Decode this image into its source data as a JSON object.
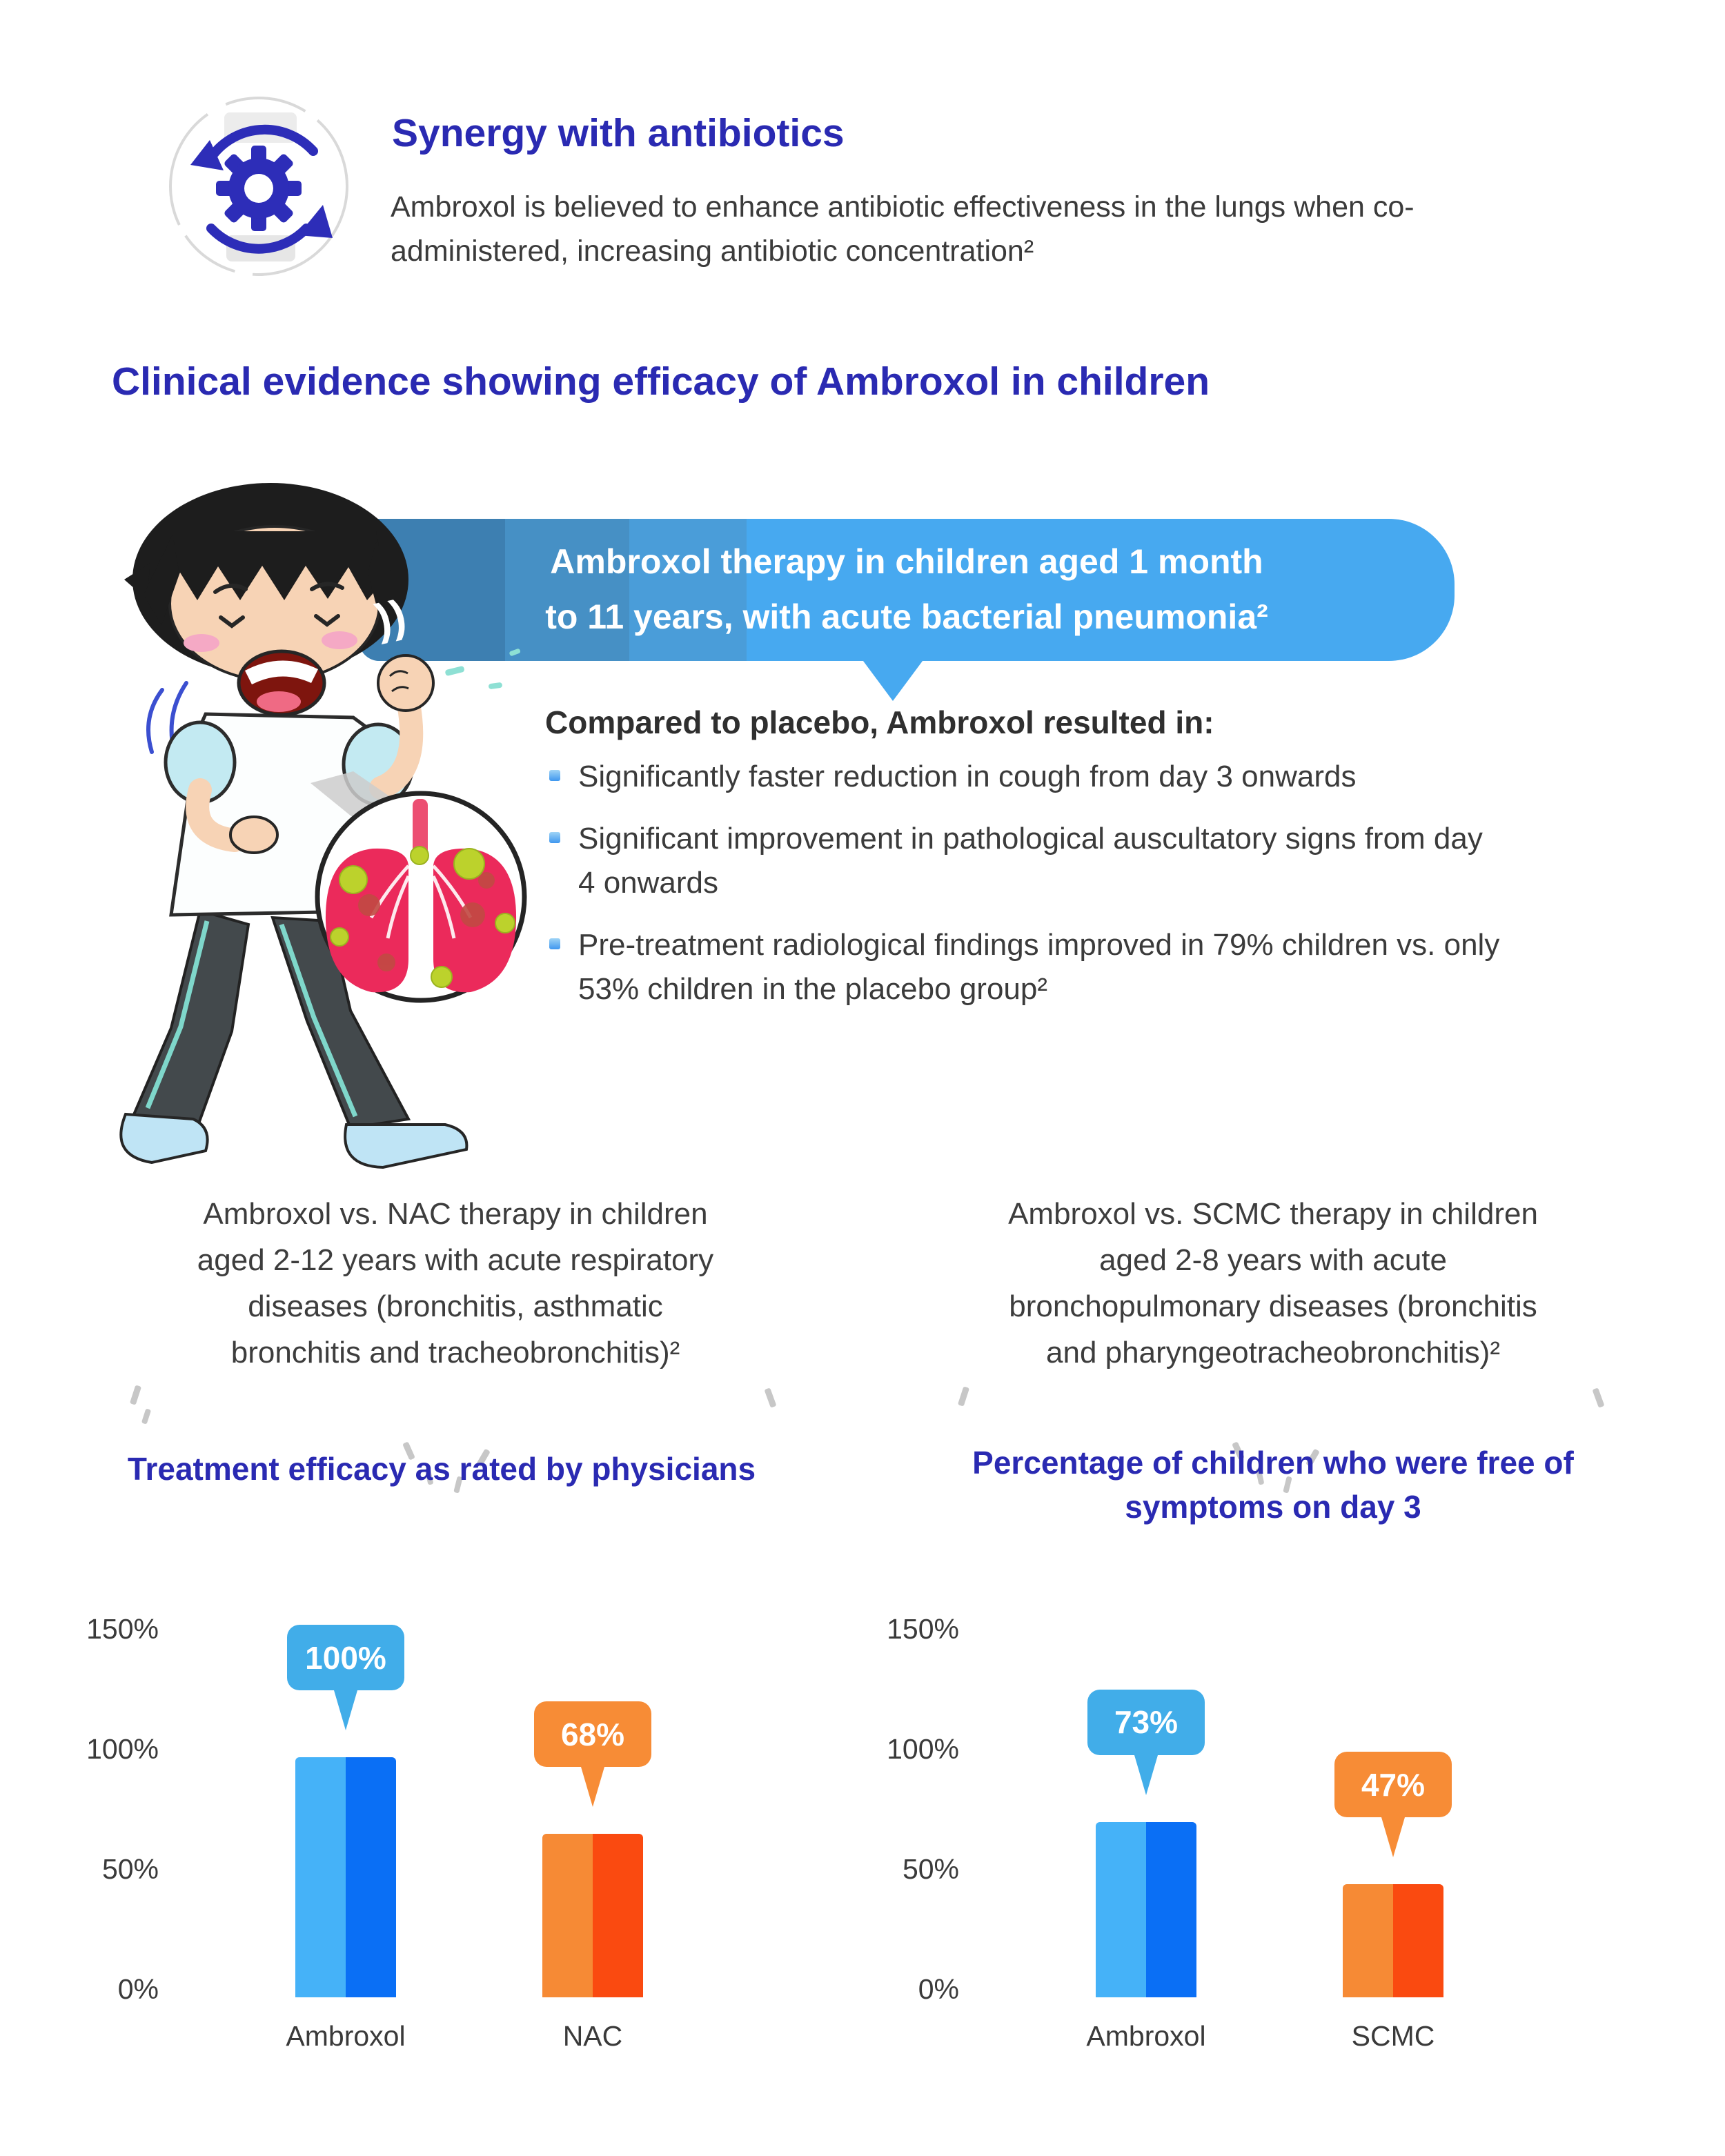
{
  "colors": {
    "heading_indigo": "#2a2ab2",
    "body_text": "#3b3b3b",
    "bubble_main": "#47a9f0",
    "bubble_bands": [
      "#3d7fb1",
      "#4690c5",
      "#4a9dd9"
    ],
    "blue_bar_light": "#45B2F8",
    "blue_bar_dark": "#0A6FF5",
    "blue_callout": "#41ADE9",
    "orange_bar_light": "#F68A35",
    "orange_bar_dark": "#FA4A10",
    "orange_callout": "#F78C36"
  },
  "synergy": {
    "icon": "gear-sync-icon",
    "title": "Synergy with antibiotics",
    "body": "Ambroxol is believed to enhance antibiotic effectiveness in the lungs when co-administered, increasing antibiotic concentration²"
  },
  "section_title": "Clinical evidence showing efficacy of Ambroxol in children",
  "bubble": {
    "line1": "Ambroxol therapy in children aged 1 month",
    "line2": "to 11 years, with acute bacterial pneumonia²",
    "sound_mark": "))"
  },
  "placebo": {
    "heading": "Compared to placebo, Ambroxol resulted in:",
    "bullets": [
      "Significantly faster reduction in cough from day 3 onwards",
      "Significant improvement in pathological auscultatory signs from day 4 onwards",
      "Pre-treatment radiological findings improved in 79% children vs. only 53% children in the placebo group²"
    ]
  },
  "studies": {
    "left": "Ambroxol vs. NAC therapy in children aged 2-12 years with acute respiratory diseases (bronchitis, asthmatic bronchitis and tracheobronchitis)²",
    "right": "Ambroxol vs. SCMC therapy in children aged 2-8 years with acute bronchopulmonary diseases (bronchitis and pharyngeotracheobronchitis)²"
  },
  "chart_data": [
    {
      "type": "bar",
      "title": "Treatment efficacy as rated by physicians",
      "categories": [
        "Ambroxol",
        "NAC"
      ],
      "values": [
        100,
        68
      ],
      "value_labels": [
        "100%",
        "68%"
      ],
      "yticks": [
        "150%",
        "100%",
        "50%",
        "0%"
      ],
      "ytick_values": [
        150,
        100,
        50,
        0
      ],
      "ylim": [
        0,
        150
      ],
      "grid": false,
      "legend": "none",
      "series_colors": [
        {
          "light": "#45B2F8",
          "dark": "#0A6FF5",
          "callout": "#41ADE9"
        },
        {
          "light": "#F68A35",
          "dark": "#FA4A10",
          "callout": "#F78C36"
        }
      ]
    },
    {
      "type": "bar",
      "title": "Percentage of children who were free of symptoms on day 3",
      "categories": [
        "Ambroxol",
        "SCMC"
      ],
      "values": [
        73,
        47
      ],
      "value_labels": [
        "73%",
        "47%"
      ],
      "yticks": [
        "150%",
        "100%",
        "50%",
        "0%"
      ],
      "ytick_values": [
        150,
        100,
        50,
        0
      ],
      "ylim": [
        0,
        150
      ],
      "grid": false,
      "legend": "none",
      "series_colors": [
        {
          "light": "#45B2F8",
          "dark": "#0A6FF5",
          "callout": "#41ADE9"
        },
        {
          "light": "#F68A35",
          "dark": "#FA4A10",
          "callout": "#F78C36"
        }
      ]
    }
  ]
}
